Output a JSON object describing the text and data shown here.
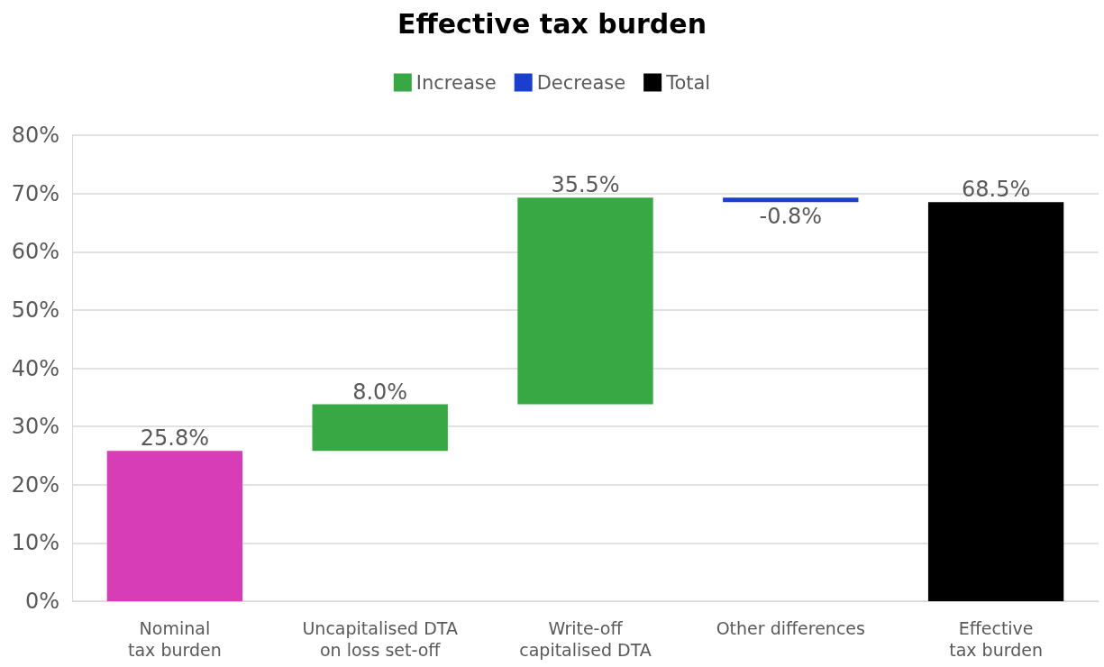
{
  "chart_data": {
    "type": "bar",
    "title": "Effective tax burden",
    "categories": [
      "Nominal tax burden",
      "Uncapitalised DTA on loss set-off",
      "Write-off capitalised DTA",
      "Other differences",
      "Effective tax burden"
    ],
    "series": [
      {
        "color": "#d63db6",
        "values": [
          25.8,
          null,
          null,
          null,
          null
        ],
        "base": [
          0,
          null,
          null,
          null,
          null
        ],
        "value_labels": [
          "25.8%",
          null,
          null,
          null,
          null
        ]
      },
      {
        "name": "Increase",
        "color": "#37a843",
        "values": [
          null,
          8.0,
          35.5,
          null,
          null
        ],
        "base": [
          null,
          25.8,
          33.8,
          null,
          null
        ],
        "value_labels": [
          null,
          "8.0%",
          "35.5%",
          null,
          null
        ]
      },
      {
        "name": "Decrease",
        "color": "#1a3fcc",
        "values": [
          null,
          null,
          null,
          -0.8,
          null
        ],
        "base": [
          null,
          null,
          null,
          69.3,
          null
        ],
        "value_labels": [
          null,
          null,
          null,
          "-0.8%",
          null
        ]
      },
      {
        "name": "Total",
        "color": "#000000",
        "values": [
          null,
          null,
          null,
          null,
          68.5
        ],
        "base": [
          null,
          null,
          null,
          null,
          0
        ],
        "value_labels": [
          null,
          null,
          null,
          null,
          "68.5%"
        ]
      }
    ],
    "ylim": [
      0,
      80
    ],
    "yticks": [
      {
        "value": 0,
        "label": "0%"
      },
      {
        "value": 10,
        "label": "10%"
      },
      {
        "value": 20,
        "label": "20%"
      },
      {
        "value": 30,
        "label": "30%"
      },
      {
        "value": 40,
        "label": "40%"
      },
      {
        "value": 50,
        "label": "50%"
      },
      {
        "value": 60,
        "label": "60%"
      },
      {
        "value": 70,
        "label": "70%"
      },
      {
        "value": 80,
        "label": "80%"
      }
    ],
    "grid": "y",
    "legend": "top"
  }
}
